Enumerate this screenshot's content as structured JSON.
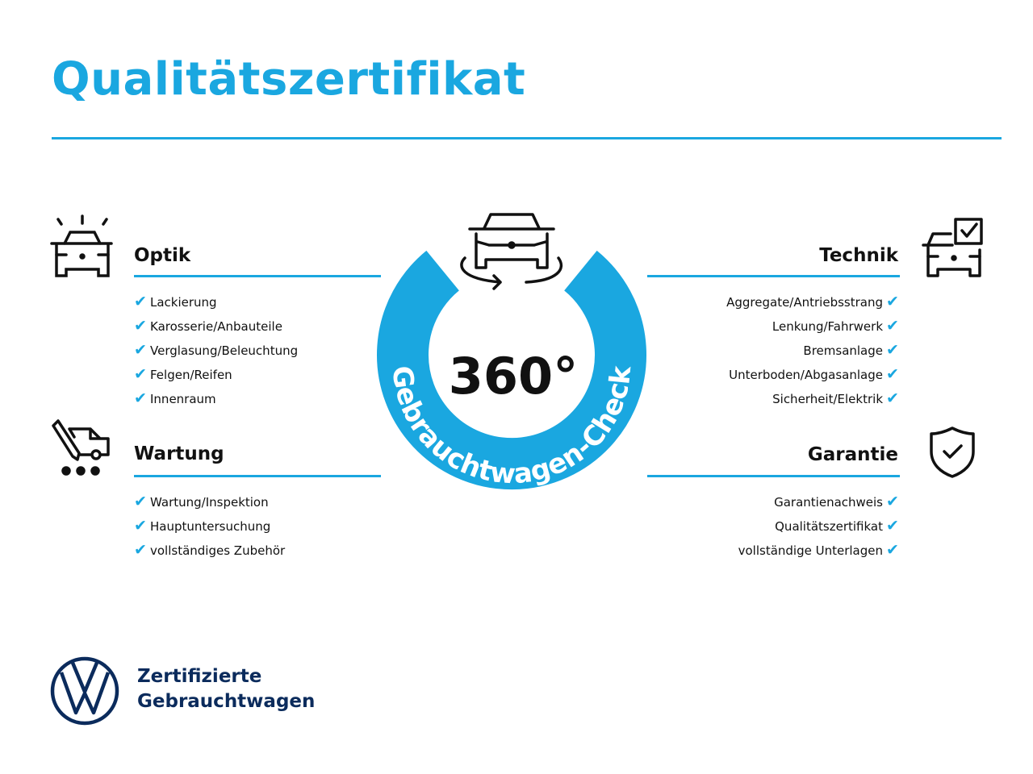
{
  "title": "Qualitätszertifikat",
  "center": {
    "degrees": "360°",
    "ring_text": "Gebrauchtwagen-Check"
  },
  "sections": {
    "optik": {
      "title": "Optik",
      "items": [
        "Lackierung",
        "Karosserie/Anbauteile",
        "Verglasung/Beleuchtung",
        "Felgen/Reifen",
        "Innenraum"
      ]
    },
    "wartung": {
      "title": "Wartung",
      "items": [
        "Wartung/Inspektion",
        "Hauptuntersuchung",
        "vollständiges Zubehör"
      ]
    },
    "technik": {
      "title": "Technik",
      "items": [
        "Aggregate/Antriebsstrang",
        "Lenkung/Fahrwerk",
        "Bremsanlage",
        "Unterboden/Abgasanlage",
        "Sicherheit/Elektrik"
      ]
    },
    "garantie": {
      "title": "Garantie",
      "items": [
        "Garantienachweis",
        "Qualitätszertifikat",
        "vollständige Unterlagen"
      ]
    }
  },
  "check_mark": "✔",
  "footer": {
    "line1": "Zertifizierte",
    "line2": "Gebrauchtwagen"
  },
  "colors": {
    "accent": "#1aa7e0",
    "brand_navy": "#0b2b5c"
  }
}
